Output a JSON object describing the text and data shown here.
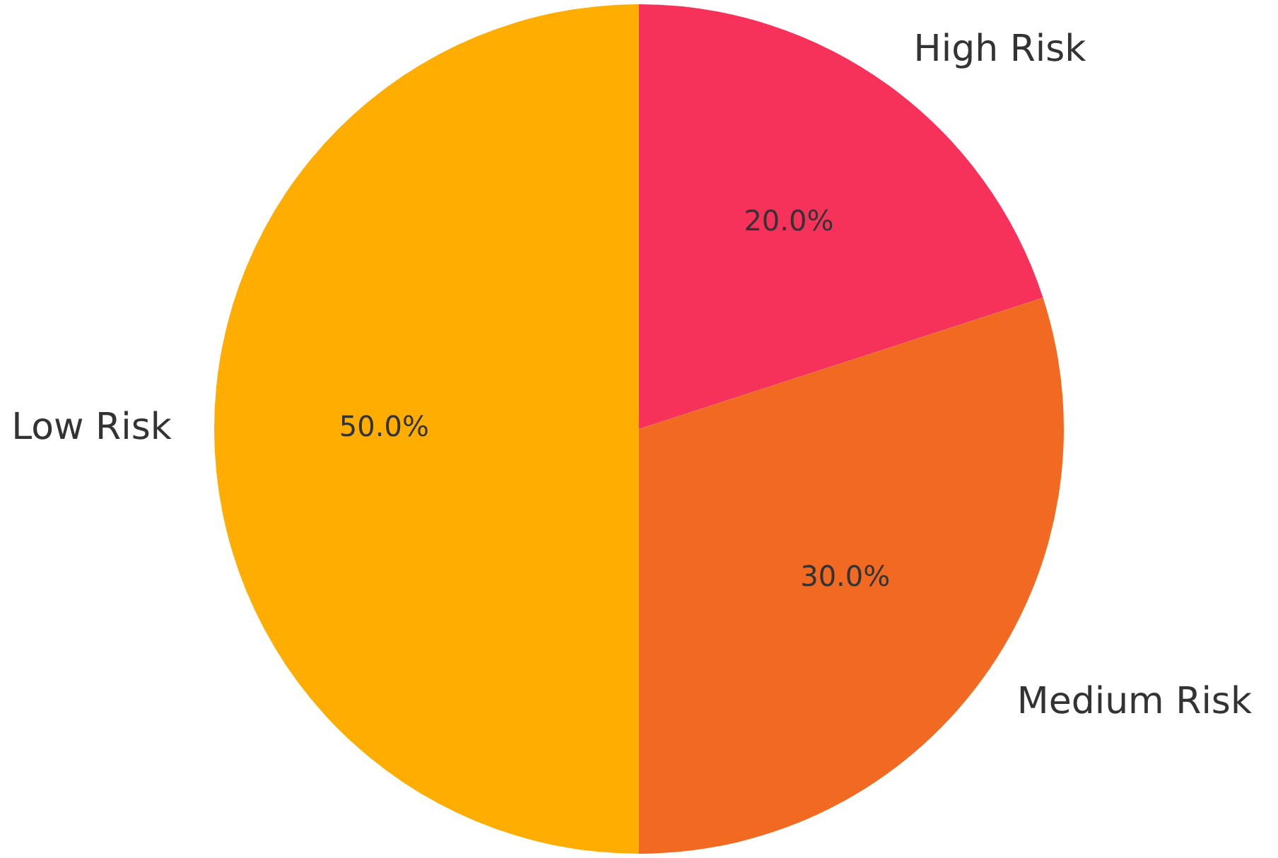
{
  "chart_data": {
    "type": "pie",
    "categories": [
      "High Risk",
      "Medium Risk",
      "Low Risk"
    ],
    "values": [
      20,
      30,
      50
    ],
    "colors": [
      "#f7325a",
      "#f26a21",
      "#ffad00"
    ],
    "value_labels": [
      "20.0%",
      "30.0%",
      "50.0%"
    ]
  }
}
